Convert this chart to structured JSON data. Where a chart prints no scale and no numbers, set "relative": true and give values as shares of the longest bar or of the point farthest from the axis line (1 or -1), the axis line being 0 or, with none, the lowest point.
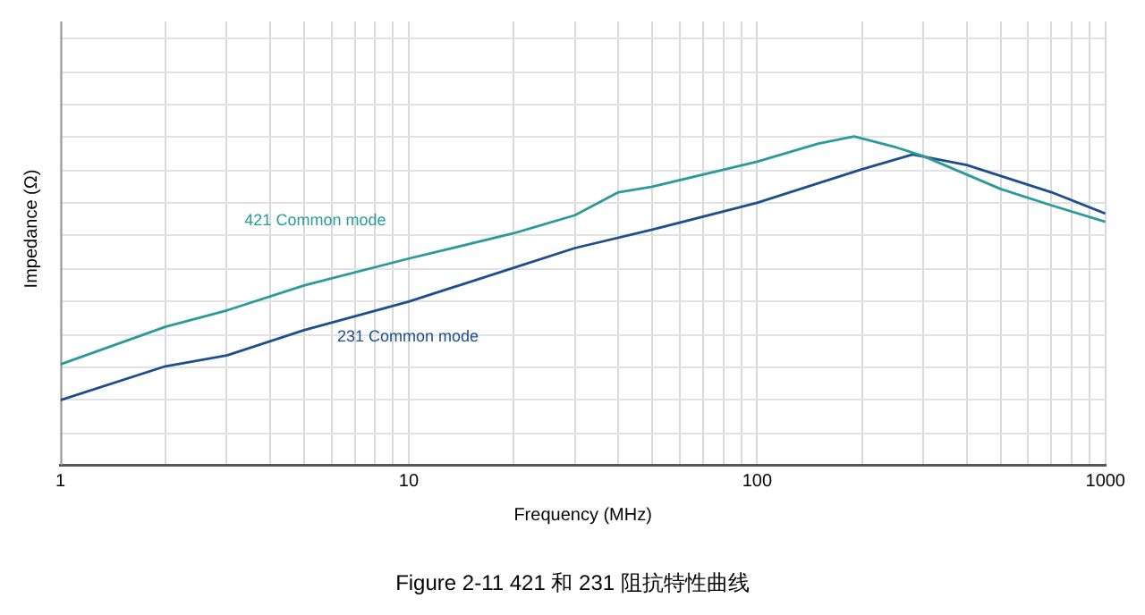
{
  "chart_data": {
    "type": "line",
    "title": "Figure 2-11 421 和 231 阻抗特性曲线",
    "xlabel": "Frequency (MHz)",
    "ylabel": "Impedance (Ω)",
    "relative": true,
    "log": "x",
    "grid": true,
    "legend": false,
    "marker": "none",
    "line_style": "solid",
    "xlim": [
      1,
      1000
    ],
    "xticks": [
      1,
      {
        "value": 2,
        "label": null
      },
      {
        "value": 3,
        "label": null
      },
      {
        "value": 4,
        "label": null
      },
      {
        "value": 5,
        "label": null
      },
      {
        "value": 6,
        "label": null
      },
      {
        "value": 7,
        "label": null
      },
      {
        "value": 8,
        "label": null
      },
      {
        "value": 9,
        "label": null
      },
      10,
      {
        "value": 20,
        "label": null
      },
      {
        "value": 30,
        "label": null
      },
      {
        "value": 40,
        "label": null
      },
      {
        "value": 50,
        "label": null
      },
      {
        "value": 60,
        "label": null
      },
      {
        "value": 70,
        "label": null
      },
      {
        "value": 80,
        "label": null
      },
      {
        "value": 90,
        "label": null
      },
      100,
      {
        "value": 200,
        "label": null
      },
      {
        "value": 300,
        "label": null
      },
      {
        "value": 400,
        "label": null
      },
      {
        "value": 500,
        "label": null
      },
      {
        "value": 600,
        "label": null
      },
      {
        "value": 700,
        "label": null
      },
      {
        "value": 800,
        "label": null
      },
      {
        "value": 900,
        "label": null
      },
      1000
    ],
    "series": [
      {
        "name": "421 Common mode",
        "color": "#2b9a9a",
        "x": [
          1,
          2,
          3,
          5,
          10,
          20,
          30,
          40,
          50,
          100,
          150,
          190,
          250,
          300,
          500,
          700,
          1000
        ],
        "values": [
          0.306,
          0.42,
          0.47,
          0.546,
          0.628,
          0.705,
          0.76,
          0.83,
          0.847,
          0.923,
          0.978,
          1,
          0.967,
          0.94,
          0.84,
          0.79,
          0.74
        ]
      },
      {
        "name": "231 Common mode",
        "color": "#1f4e8c",
        "x": [
          1,
          2,
          3,
          5,
          10,
          20,
          30,
          50,
          100,
          200,
          280,
          400,
          700,
          1000
        ],
        "values": [
          0.197,
          0.3,
          0.333,
          0.41,
          0.497,
          0.6,
          0.66,
          0.716,
          0.798,
          0.9,
          0.945,
          0.913,
          0.83,
          0.765
        ]
      }
    ]
  }
}
